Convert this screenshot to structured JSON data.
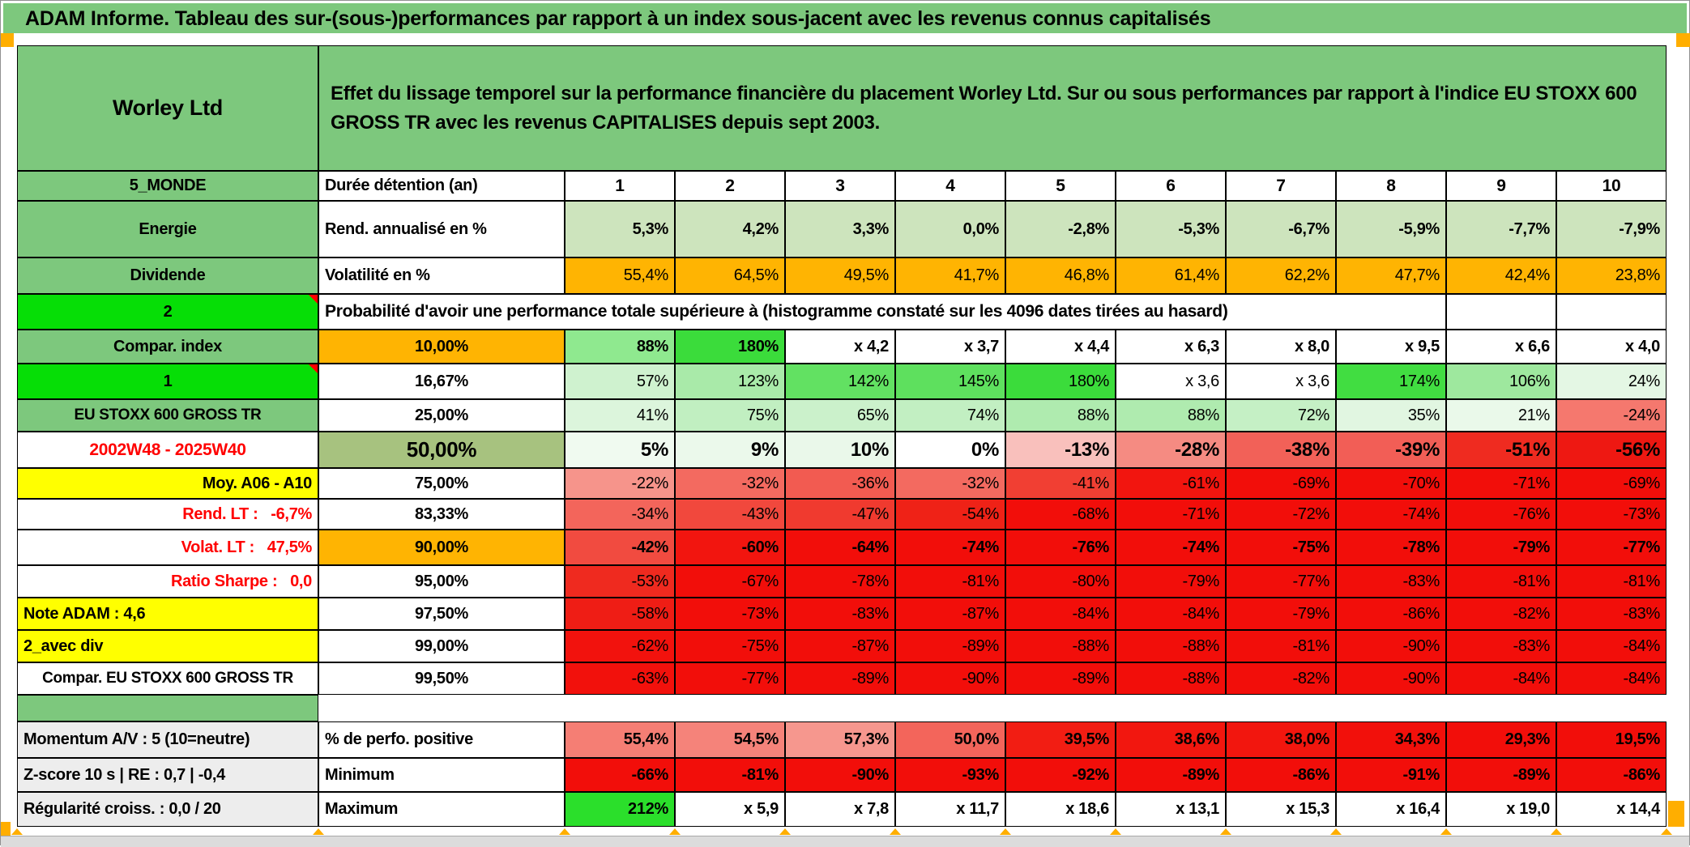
{
  "title": "ADAM Informe. Tableau des sur-(sous-)performances par rapport à un index sous-jacent avec les revenus connus capitalisés",
  "header": {
    "name": "Worley Ltd",
    "description": "Effet du lissage temporel sur la performance financière du placement Worley Ltd. Sur ou sous performances par rapport à l'indice EU STOXX 600 GROSS TR avec les revenus CAPITALISES depuis sept 2003."
  },
  "colors": {
    "green": "#7DC87D",
    "bright_green": "#06DE06",
    "orange": "#FFB402",
    "yellow": "#FFFF00",
    "light_green": "#CDE4BD",
    "sage": "#A7C27F",
    "full_red": "#F20E0A",
    "red_text": "#FF0000",
    "gray_label": "#EDEDED",
    "marker_orange": "#FFAE00"
  },
  "main_rows": [
    {
      "left": {
        "t": "5_MONDE",
        "bg": "#7DC87D",
        "al": "c"
      },
      "label": {
        "t": "Durée détention (an)",
        "al": "l"
      },
      "values": [
        "1",
        "2",
        "3",
        "4",
        "5",
        "6",
        "7",
        "8",
        "9",
        "10"
      ],
      "bg": "#FFFFFF",
      "bold": true,
      "align": "c",
      "fs": 21
    },
    {
      "left": {
        "t": "Energie",
        "bg": "#7DC87D",
        "al": "c"
      },
      "label": {
        "t": "Rend. annualisé en %",
        "al": "l"
      },
      "values": [
        "5,3%",
        "4,2%",
        "3,3%",
        "0,0%",
        "-2,8%",
        "-5,3%",
        "-6,7%",
        "-5,9%",
        "-7,7%",
        "-7,9%"
      ],
      "bg": "#CDE4BD",
      "bold": true
    },
    {
      "left": {
        "t": "Dividende",
        "bg": "#7DC87D",
        "al": "c"
      },
      "label": {
        "t": "Volatilité en %",
        "al": "l"
      },
      "values": [
        "55,4%",
        "64,5%",
        "49,5%",
        "41,7%",
        "46,8%",
        "61,4%",
        "62,2%",
        "47,7%",
        "42,4%",
        "23,8%"
      ],
      "bg": "#FFB402",
      "bold": false
    },
    {
      "left": {
        "t": "2",
        "bg": "#06DE06",
        "al": "c",
        "corner": true
      },
      "note": "Probabilité d'avoir une performance totale supérieure à (histogramme constaté sur les 4096 dates tirées au hasard)"
    },
    {
      "left": {
        "t": "Compar. index",
        "bg": "#7DC87D",
        "al": "c"
      },
      "label": {
        "t": "10,00%",
        "bg": "#FFB402",
        "al": "c"
      },
      "values": [
        "88%",
        "180%",
        "x 4,2",
        "x 3,7",
        "x 4,4",
        "x 6,3",
        "x 8,0",
        "x 9,5",
        "x 6,6",
        "x 4,0"
      ],
      "bg": [
        "#8FE98F",
        "#3BDC3B",
        "#FFFFFF",
        "#FFFFFF",
        "#FFFFFF",
        "#FFFFFF",
        "#FFFFFF",
        "#FFFFFF",
        "#FFFFFF",
        "#FFFFFF"
      ],
      "bold": true
    },
    {
      "left": {
        "t": "1",
        "bg": "#06DE06",
        "al": "c",
        "corner": true
      },
      "label": {
        "t": "16,67%",
        "al": "c"
      },
      "values": [
        "57%",
        "123%",
        "142%",
        "145%",
        "180%",
        "x 3,6",
        "x 3,6",
        "174%",
        "106%",
        "24%"
      ],
      "bg": [
        "#CFF2CF",
        "#A9EAA9",
        "#62E162",
        "#5EE05E",
        "#3BDC3B",
        "#FFFFFF",
        "#FFFFFF",
        "#41DD41",
        "#9EE89E",
        "#E4F7E4"
      ],
      "bold": false
    },
    {
      "left": {
        "t": "EU STOXX 600 GROSS TR",
        "bg": "#7DC87D",
        "al": "c",
        "fs": 19
      },
      "label": {
        "t": "25,00%",
        "al": "c"
      },
      "values": [
        "41%",
        "75%",
        "65%",
        "74%",
        "88%",
        "88%",
        "72%",
        "35%",
        "21%",
        "-24%"
      ],
      "bg": [
        "#DCF5DC",
        "#C1EFC1",
        "#CBF1CB",
        "#C2EFC2",
        "#AFEBAF",
        "#AFEBAF",
        "#C5F0C5",
        "#E1F6E1",
        "#EAF9EA",
        "#F5786E"
      ],
      "bold": false
    },
    {
      "left": {
        "t": "2002W48 - 2025W40",
        "bg": "#FFFFFF",
        "color": "#FF0000",
        "al": "c",
        "fs": 21
      },
      "label": {
        "t": "50,00%",
        "bg": "#A7C27F",
        "al": "c",
        "fs": 26
      },
      "values": [
        "5%",
        "9%",
        "10%",
        "0%",
        "-13%",
        "-28%",
        "-38%",
        "-39%",
        "-51%",
        "-56%"
      ],
      "bg": [
        "#F0FAF0",
        "#EBF9EB",
        "#EAF8EA",
        "#FFFFFF",
        "#F9C0BC",
        "#F58B82",
        "#F26158",
        "#F25E56",
        "#EF2B20",
        "#EE1812"
      ],
      "bold": true,
      "fs": 24
    },
    {
      "left": {
        "t": "Moy. A06 - A10",
        "bg": "#FFFF00",
        "al": "r"
      },
      "label": {
        "t": "75,00%",
        "al": "c"
      },
      "values": [
        "-22%",
        "-32%",
        "-36%",
        "-32%",
        "-41%",
        "-61%",
        "-69%",
        "-70%",
        "-71%",
        "-69%"
      ],
      "bg": [
        "#F6948B",
        "#F36A60",
        "#F25B51",
        "#F36A60",
        "#F13F33",
        "#F2150F",
        "#F20E0A",
        "#F20E0A",
        "#F20E0A",
        "#F20E0A"
      ],
      "bold": false
    },
    {
      "left": {
        "t": "Rend. LT :   -6,7%",
        "bg": "#FFFFFF",
        "color": "#FF0000",
        "al": "r"
      },
      "label": {
        "t": "83,33%",
        "al": "c"
      },
      "values": [
        "-34%",
        "-43%",
        "-47%",
        "-54%",
        "-68%",
        "-71%",
        "-72%",
        "-74%",
        "-76%",
        "-73%"
      ],
      "bg": [
        "#F3655B",
        "#F1483D",
        "#F03A2F",
        "#EF2217",
        "#F20E0A",
        "#F20E0A",
        "#F20E0A",
        "#F20E0A",
        "#F20E0A",
        "#F20E0A"
      ],
      "bold": false
    },
    {
      "left": {
        "t": "Volat. LT :   47,5%",
        "bg": "#FFFFFF",
        "color": "#FF0000",
        "al": "r"
      },
      "label": {
        "t": "90,00%",
        "bg": "#FFB402",
        "al": "c"
      },
      "values": [
        "-42%",
        "-60%",
        "-64%",
        "-74%",
        "-76%",
        "-74%",
        "-75%",
        "-78%",
        "-79%",
        "-77%"
      ],
      "bg": [
        "#F14B40",
        "#F2150F",
        "#F20E0A",
        "#F20E0A",
        "#F20E0A",
        "#F20E0A",
        "#F20E0A",
        "#F20E0A",
        "#F20E0A",
        "#F20E0A"
      ],
      "bold": true
    },
    {
      "left": {
        "t": "Ratio Sharpe :   0,0",
        "bg": "#FFFFFF",
        "color": "#FF0000",
        "al": "r"
      },
      "label": {
        "t": "95,00%",
        "al": "c"
      },
      "values": [
        "-53%",
        "-67%",
        "-78%",
        "-81%",
        "-80%",
        "-79%",
        "-77%",
        "-83%",
        "-81%",
        "-81%"
      ],
      "bg": [
        "#EF2A1F",
        "#F20E0A",
        "#F20E0A",
        "#F20E0A",
        "#F20E0A",
        "#F20E0A",
        "#F20E0A",
        "#F20E0A",
        "#F20E0A",
        "#F20E0A"
      ],
      "bold": false
    },
    {
      "left": {
        "t": "Note ADAM : 4,6",
        "bg": "#FFFF00",
        "al": "l"
      },
      "label": {
        "t": "97,50%",
        "al": "c"
      },
      "values": [
        "-58%",
        "-73%",
        "-83%",
        "-87%",
        "-84%",
        "-84%",
        "-79%",
        "-86%",
        "-82%",
        "-83%"
      ],
      "bg": [
        "#EF1D15",
        "#F20E0A",
        "#F20E0A",
        "#F20E0A",
        "#F20E0A",
        "#F20E0A",
        "#F20E0A",
        "#F20E0A",
        "#F20E0A",
        "#F20E0A"
      ],
      "bold": false
    },
    {
      "left": {
        "t": "2_avec div",
        "bg": "#FFFF00",
        "al": "l"
      },
      "label": {
        "t": "99,00%",
        "al": "c"
      },
      "values": [
        "-62%",
        "-75%",
        "-87%",
        "-89%",
        "-88%",
        "-88%",
        "-81%",
        "-90%",
        "-83%",
        "-84%"
      ],
      "bg": [
        "#F2120D",
        "#F20E0A",
        "#F20E0A",
        "#F20E0A",
        "#F20E0A",
        "#F20E0A",
        "#F20E0A",
        "#F20E0A",
        "#F20E0A",
        "#F20E0A"
      ],
      "bold": false
    },
    {
      "left": {
        "t": "Compar. EU STOXX 600 GROSS TR",
        "bg": "#FFFFFF",
        "al": "c",
        "fs": 19
      },
      "label": {
        "t": "99,50%",
        "al": "c"
      },
      "values": [
        "-63%",
        "-77%",
        "-89%",
        "-90%",
        "-89%",
        "-88%",
        "-82%",
        "-90%",
        "-84%",
        "-84%"
      ],
      "bg": [
        "#F2110C",
        "#F20E0A",
        "#F20E0A",
        "#F20E0A",
        "#F20E0A",
        "#F20E0A",
        "#F20E0A",
        "#F20E0A",
        "#F20E0A",
        "#F20E0A"
      ],
      "bold": false
    }
  ],
  "bottom_rows": [
    {
      "left": {
        "t": "Momentum A/V : 5 (10=neutre)",
        "bg": "#EDEDED",
        "al": "l"
      },
      "label": {
        "t": "% de perfo. positive",
        "al": "l"
      },
      "values": [
        "55,4%",
        "54,5%",
        "57,3%",
        "50,0%",
        "39,5%",
        "38,6%",
        "38,0%",
        "34,3%",
        "29,3%",
        "19,5%"
      ],
      "bg": [
        "#F57E74",
        "#F5837A",
        "#F6978E",
        "#F3655B",
        "#F21D13",
        "#F2170F",
        "#F2160E",
        "#F2100B",
        "#F20E0A",
        "#F20E0A"
      ],
      "bold": true
    },
    {
      "left": {
        "t": "Z-score 10 s | RE : 0,7 | -0,4",
        "bg": "#EDEDED",
        "al": "l"
      },
      "label": {
        "t": "Minimum",
        "al": "l"
      },
      "values": [
        "-66%",
        "-81%",
        "-90%",
        "-93%",
        "-92%",
        "-89%",
        "-86%",
        "-91%",
        "-89%",
        "-86%"
      ],
      "bg": "#F20E0A",
      "bold": true
    },
    {
      "left": {
        "t": "Régularité croiss. : 0,0 / 20",
        "bg": "#EDEDED",
        "al": "l"
      },
      "label": {
        "t": "Maximum",
        "al": "l"
      },
      "values": [
        "212%",
        "x 5,9",
        "x 7,8",
        "x 11,7",
        "x 18,6",
        "x 13,1",
        "x 15,3",
        "x 16,4",
        "x 19,0",
        "x 14,4"
      ],
      "bg": [
        "#2BDF2B",
        "#FFFFFF",
        "#FFFFFF",
        "#FFFFFF",
        "#FFFFFF",
        "#FFFFFF",
        "#FFFFFF",
        "#FFFFFF",
        "#FFFFFF",
        "#FFFFFF"
      ],
      "bold": true
    }
  ]
}
